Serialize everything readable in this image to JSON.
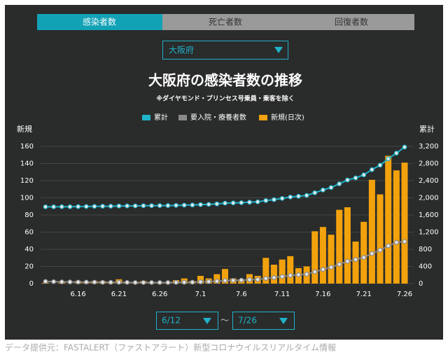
{
  "tabs": [
    "感染者数",
    "死亡者数",
    "回復者数"
  ],
  "region": "大阪府",
  "chart_data": {
    "type": "bar",
    "title": "大阪府の感染者数の推移",
    "subtitle": "※ダイヤモンド・プリンセス号乗員・乗客を除く",
    "y_label": "新規",
    "y2_label": "累計",
    "categories": [
      null,
      null,
      null,
      null,
      "6.16",
      null,
      null,
      null,
      null,
      "6.21",
      null,
      null,
      null,
      null,
      "6.26",
      null,
      null,
      null,
      null,
      "7.1",
      null,
      null,
      null,
      null,
      "7.6",
      null,
      null,
      null,
      null,
      "7.11",
      null,
      null,
      null,
      null,
      "7.16",
      null,
      null,
      null,
      null,
      "7.21",
      null,
      null,
      null,
      null,
      "7.26"
    ],
    "series": [
      {
        "name": "累計",
        "type": "line",
        "axis": "y2",
        "color": "#1fb3c9",
        "values": [
          1790,
          1790,
          1792,
          1792,
          1795,
          1797,
          1800,
          1803,
          1804,
          1809,
          1811,
          1812,
          1815,
          1816,
          1818,
          1819,
          1823,
          1829,
          1832,
          1841,
          1847,
          1858,
          1875,
          1881,
          1886,
          1897,
          1906,
          1936,
          1958,
          1986,
          2018,
          2036,
          2056,
          2117,
          2183,
          2240,
          2326,
          2415,
          2464,
          2536,
          2657,
          2761,
          2910,
          3042,
          3183
        ]
      },
      {
        "name": "要入院・療養者数",
        "type": "line",
        "axis": "y2",
        "color": "#8a8a8a",
        "values": [
          50,
          45,
          40,
          38,
          35,
          35,
          33,
          30,
          30,
          30,
          28,
          25,
          25,
          25,
          25,
          25,
          28,
          30,
          32,
          40,
          45,
          55,
          70,
          75,
          80,
          90,
          95,
          120,
          140,
          165,
          190,
          205,
          220,
          275,
          330,
          380,
          450,
          520,
          560,
          610,
          700,
          780,
          880,
          960,
          980
        ]
      },
      {
        "name": "新規(日次)",
        "type": "bar",
        "axis": "y",
        "color": "#f2a20c",
        "values": [
          1,
          0,
          2,
          0,
          3,
          2,
          3,
          3,
          1,
          5,
          2,
          1,
          3,
          1,
          2,
          1,
          4,
          6,
          3,
          9,
          6,
          11,
          17,
          6,
          5,
          11,
          9,
          30,
          22,
          28,
          32,
          18,
          20,
          61,
          66,
          57,
          86,
          89,
          49,
          72,
          121,
          104,
          149,
          132,
          141
        ]
      }
    ],
    "ylim": [
      0,
      160
    ],
    "yticks": [
      0,
      20,
      40,
      60,
      80,
      100,
      120,
      140,
      160
    ],
    "y2lim": [
      0,
      3200
    ],
    "y2ticks": [
      0,
      400,
      800,
      {
        "value": 1200,
        "label": "1,200"
      },
      {
        "value": 1600,
        "label": "1,600"
      },
      {
        "value": 2000,
        "label": "2,000"
      },
      {
        "value": 2400,
        "label": "2,400"
      },
      {
        "value": 2800,
        "label": "2,800"
      },
      {
        "value": 3200,
        "label": "3,200"
      }
    ],
    "grid": true,
    "legend": "top"
  },
  "range_start": "6/12",
  "range_separator": "～",
  "range_end": "7/26",
  "footer": "データ提供元：FASTALERT（ファストアラート）新型コロナウイルスリアルタイム情報"
}
